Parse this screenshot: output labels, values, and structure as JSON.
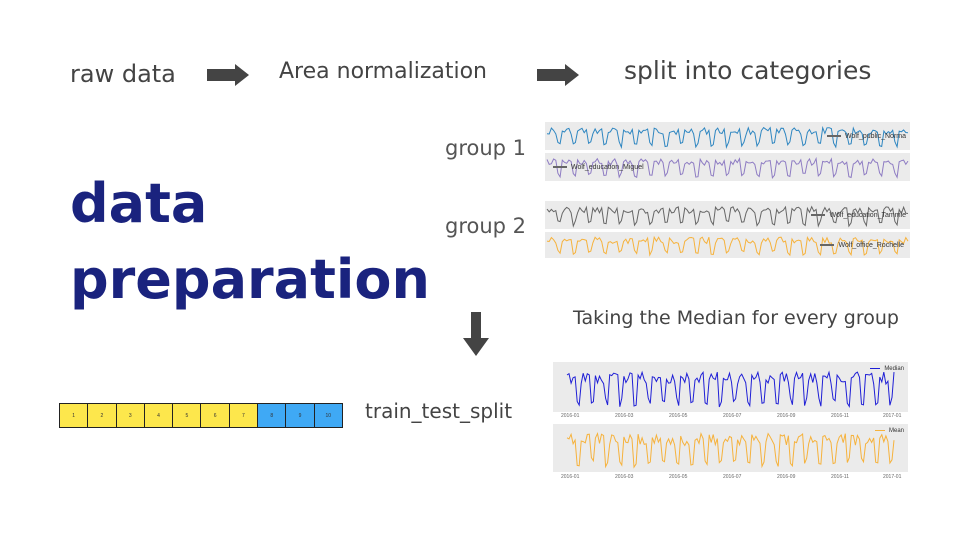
{
  "flow": {
    "step1": "raw data",
    "step2": "Area normalization",
    "step3": "split into categories"
  },
  "title": {
    "line1": "data",
    "line2": "preparation"
  },
  "groups": [
    {
      "label": "group 1",
      "series": [
        {
          "name": "Wolf_public_Norma",
          "color": "#2e86c1"
        },
        {
          "name": "Wolf_education_Miguel",
          "color": "#8e7cc3"
        }
      ]
    },
    {
      "label": "group 2",
      "series": [
        {
          "name": "Wolf_education_Tammie",
          "color": "#666666"
        },
        {
          "name": "Wolf_office_Rochelle",
          "color": "#f6b23c"
        }
      ]
    }
  ],
  "median_caption": "Taking the Median for every group",
  "aggregate_charts": [
    {
      "legend": "Median",
      "color": "#1f1fd6",
      "ticks": [
        "2016-01",
        "2016-03",
        "2016-05",
        "2016-07",
        "2016-09",
        "2016-11",
        "2017-01"
      ]
    },
    {
      "legend": "Mean",
      "color": "#f6b23c",
      "ticks": [
        "2016-01",
        "2016-03",
        "2016-05",
        "2016-07",
        "2016-09",
        "2016-11",
        "2017-01"
      ]
    }
  ],
  "split": {
    "label": "train_test_split",
    "segments": [
      {
        "label": "1",
        "set": "train",
        "color": "#fde74c"
      },
      {
        "label": "2",
        "set": "train",
        "color": "#fde74c"
      },
      {
        "label": "3",
        "set": "train",
        "color": "#fde74c"
      },
      {
        "label": "4",
        "set": "train",
        "color": "#fde74c"
      },
      {
        "label": "5",
        "set": "train",
        "color": "#fde74c"
      },
      {
        "label": "6",
        "set": "train",
        "color": "#fde74c"
      },
      {
        "label": "7",
        "set": "train",
        "color": "#fde74c"
      },
      {
        "label": "8",
        "set": "test",
        "color": "#3fa9f5"
      },
      {
        "label": "9",
        "set": "test",
        "color": "#3fa9f5"
      },
      {
        "label": "10",
        "set": "test",
        "color": "#3fa9f5"
      }
    ]
  },
  "icons": {
    "flow_arrow": "right-arrow-icon",
    "down_arrow": "down-arrow-icon"
  }
}
